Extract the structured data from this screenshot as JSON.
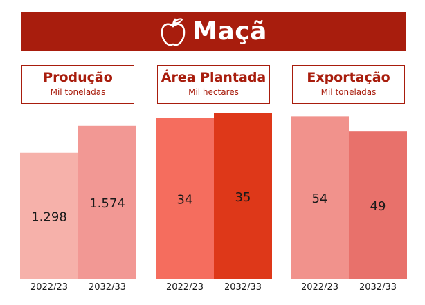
{
  "header": {
    "title": "Maçã",
    "icon": "apple-icon",
    "color": "#a81d0d"
  },
  "chart_data": [
    {
      "type": "bar",
      "title": "Produção",
      "subtitle": "Mil toneladas",
      "categories": [
        "2022/23",
        "2032/33"
      ],
      "values": [
        1298,
        1574
      ],
      "labels": [
        "1.298",
        "1.574"
      ],
      "colors": [
        "#f6b1aa",
        "#f29894"
      ],
      "ylim": [
        0,
        1700
      ]
    },
    {
      "type": "bar",
      "title": "Área Plantada",
      "subtitle": "Mil hectares",
      "categories": [
        "2022/23",
        "2032/33"
      ],
      "values": [
        34,
        35
      ],
      "labels": [
        "34",
        "35"
      ],
      "colors": [
        "#f56d5e",
        "#de3819"
      ],
      "ylim": [
        0,
        35
      ]
    },
    {
      "type": "bar",
      "title": "Exportação",
      "subtitle": "Mil toneladas",
      "categories": [
        "2022/23",
        "2032/33"
      ],
      "values": [
        54,
        49
      ],
      "labels": [
        "54",
        "49"
      ],
      "colors": [
        "#f1928c",
        "#e8716b"
      ],
      "ylim": [
        0,
        55
      ]
    }
  ]
}
